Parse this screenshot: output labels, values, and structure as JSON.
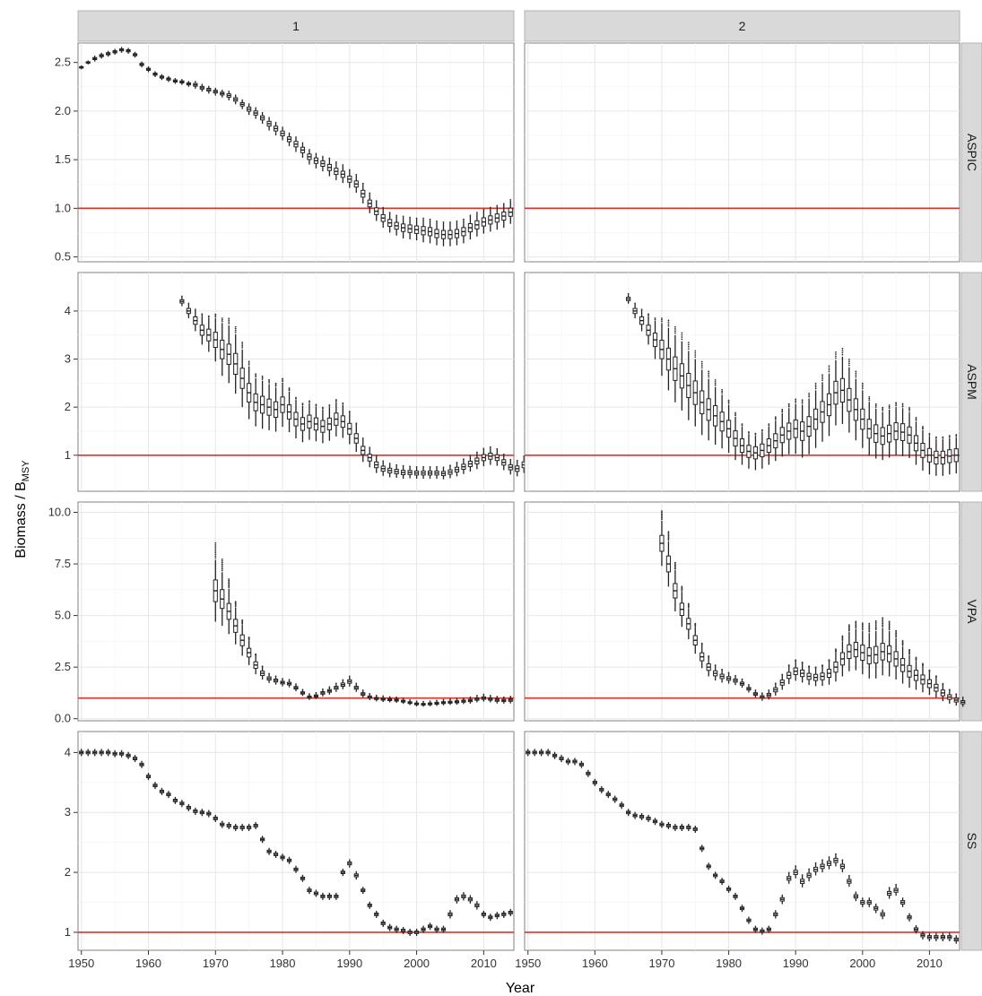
{
  "chart_data": {
    "type": "boxplot-facet-grid",
    "xlabel": "Year",
    "ylabel": "Biomass / B",
    "ylabel_subscript": "MSY",
    "reference_line": {
      "y": 1,
      "color": "#e0302a"
    },
    "columns": [
      "1",
      "2"
    ],
    "rows": [
      {
        "label": "ASPIC",
        "ylim": [
          0.45,
          2.7
        ],
        "yticks": [
          0.5,
          1.0,
          1.5,
          2.0,
          2.5
        ],
        "ytick_labels": [
          "0.5",
          "1.0",
          "1.5",
          "2.0",
          "2.5"
        ]
      },
      {
        "label": "ASPM",
        "ylim": [
          0.25,
          4.8
        ],
        "yticks": [
          1,
          2,
          3,
          4
        ],
        "ytick_labels": [
          "1",
          "2",
          "3",
          "4"
        ]
      },
      {
        "label": "VPA",
        "ylim": [
          -0.1,
          10.5
        ],
        "yticks": [
          0.0,
          2.5,
          5.0,
          7.5,
          10.0
        ],
        "ytick_labels": [
          "0.0",
          "2.5",
          "5.0",
          "7.5",
          "10.0"
        ]
      },
      {
        "label": "SS",
        "ylim": [
          0.7,
          4.35
        ],
        "yticks": [
          1,
          2,
          3,
          4
        ],
        "ytick_labels": [
          "1",
          "2",
          "3",
          "4"
        ]
      }
    ],
    "xlim": [
      1949.5,
      2014.5
    ],
    "xticks": [
      1950,
      1960,
      1970,
      1980,
      1990,
      2000,
      2010
    ],
    "xtick_labels": [
      "1950",
      "1960",
      "1970",
      "1980",
      "1990",
      "2000",
      "2010"
    ],
    "series": [
      {
        "row": "ASPIC",
        "col": "1",
        "start": 1950,
        "median": [
          2.45,
          2.5,
          2.54,
          2.57,
          2.59,
          2.61,
          2.63,
          2.62,
          2.58,
          2.48,
          2.43,
          2.38,
          2.35,
          2.33,
          2.31,
          2.3,
          2.28,
          2.27,
          2.24,
          2.22,
          2.2,
          2.18,
          2.16,
          2.12,
          2.07,
          2.02,
          1.98,
          1.93,
          1.87,
          1.82,
          1.77,
          1.71,
          1.66,
          1.6,
          1.53,
          1.49,
          1.46,
          1.42,
          1.38,
          1.35,
          1.3,
          1.25,
          1.15,
          1.05,
          0.97,
          0.9,
          0.85,
          0.82,
          0.8,
          0.79,
          0.78,
          0.77,
          0.76,
          0.74,
          0.73,
          0.73,
          0.74,
          0.76,
          0.8,
          0.83,
          0.86,
          0.88,
          0.9,
          0.92,
          0.96
        ],
        "spread": [
          0.02,
          0.02,
          0.03,
          0.03,
          0.03,
          0.03,
          0.03,
          0.03,
          0.03,
          0.03,
          0.03,
          0.03,
          0.03,
          0.03,
          0.03,
          0.03,
          0.03,
          0.04,
          0.04,
          0.04,
          0.04,
          0.04,
          0.05,
          0.05,
          0.05,
          0.06,
          0.06,
          0.06,
          0.07,
          0.07,
          0.07,
          0.07,
          0.08,
          0.08,
          0.08,
          0.08,
          0.08,
          0.09,
          0.09,
          0.09,
          0.09,
          0.09,
          0.1,
          0.1,
          0.1,
          0.1,
          0.1,
          0.1,
          0.11,
          0.11,
          0.11,
          0.12,
          0.12,
          0.12,
          0.12,
          0.12,
          0.12,
          0.12,
          0.12,
          0.12,
          0.12,
          0.12,
          0.12,
          0.12,
          0.12
        ]
      },
      {
        "row": "ASPIC",
        "col": "2",
        "start": 1950,
        "median": [],
        "spread": []
      },
      {
        "row": "ASPM",
        "col": "1",
        "start": 1965,
        "median": [
          4.2,
          4.0,
          3.8,
          3.6,
          3.5,
          3.4,
          3.2,
          3.1,
          2.9,
          2.6,
          2.3,
          2.1,
          2.05,
          2.0,
          1.95,
          2.05,
          1.9,
          1.75,
          1.65,
          1.7,
          1.65,
          1.6,
          1.65,
          1.75,
          1.7,
          1.55,
          1.35,
          1.1,
          0.95,
          0.8,
          0.72,
          0.68,
          0.66,
          0.64,
          0.64,
          0.63,
          0.63,
          0.63,
          0.63,
          0.62,
          0.65,
          0.7,
          0.76,
          0.82,
          0.88,
          0.95,
          0.98,
          0.95,
          0.85,
          0.75,
          0.72,
          0.8,
          0.95
        ],
        "spread": [
          0.1,
          0.15,
          0.22,
          0.3,
          0.35,
          0.45,
          0.55,
          0.6,
          0.62,
          0.6,
          0.55,
          0.5,
          0.5,
          0.48,
          0.46,
          0.46,
          0.42,
          0.4,
          0.38,
          0.38,
          0.36,
          0.35,
          0.35,
          0.36,
          0.34,
          0.32,
          0.28,
          0.24,
          0.2,
          0.17,
          0.15,
          0.14,
          0.13,
          0.13,
          0.12,
          0.12,
          0.12,
          0.12,
          0.12,
          0.12,
          0.13,
          0.14,
          0.15,
          0.16,
          0.17,
          0.18,
          0.18,
          0.17,
          0.16,
          0.15,
          0.16,
          0.17,
          0.18
        ]
      },
      {
        "row": "ASPM",
        "col": "2",
        "start": 1965,
        "median": [
          4.25,
          4.0,
          3.8,
          3.6,
          3.4,
          3.2,
          3.0,
          2.8,
          2.65,
          2.45,
          2.3,
          2.1,
          1.95,
          1.82,
          1.7,
          1.55,
          1.35,
          1.2,
          1.08,
          1.05,
          1.1,
          1.2,
          1.3,
          1.42,
          1.5,
          1.55,
          1.5,
          1.6,
          1.75,
          1.9,
          2.05,
          2.3,
          2.35,
          2.15,
          1.95,
          1.75,
          1.55,
          1.45,
          1.4,
          1.45,
          1.5,
          1.48,
          1.42,
          1.25,
          1.1,
          1.0,
          0.95,
          0.95,
          0.98,
          1.0
        ],
        "spread": [
          0.1,
          0.15,
          0.22,
          0.3,
          0.4,
          0.55,
          0.65,
          0.7,
          0.72,
          0.72,
          0.7,
          0.68,
          0.64,
          0.6,
          0.56,
          0.5,
          0.45,
          0.4,
          0.36,
          0.36,
          0.38,
          0.4,
          0.42,
          0.45,
          0.48,
          0.52,
          0.55,
          0.58,
          0.6,
          0.62,
          0.65,
          0.68,
          0.7,
          0.68,
          0.64,
          0.6,
          0.56,
          0.52,
          0.5,
          0.5,
          0.5,
          0.5,
          0.48,
          0.45,
          0.42,
          0.4,
          0.38,
          0.38,
          0.38,
          0.38
        ]
      },
      {
        "row": "VPA",
        "col": "1",
        "start": 1970,
        "median": [
          6.2,
          5.8,
          5.2,
          4.5,
          3.8,
          3.2,
          2.6,
          2.2,
          1.95,
          1.85,
          1.75,
          1.7,
          1.5,
          1.25,
          1.05,
          1.1,
          1.25,
          1.35,
          1.5,
          1.65,
          1.8,
          1.5,
          1.2,
          1.05,
          0.98,
          0.95,
          0.92,
          0.9,
          0.85,
          0.78,
          0.72,
          0.7,
          0.72,
          0.75,
          0.78,
          0.8,
          0.82,
          0.85,
          0.88,
          0.95,
          1.0,
          0.95,
          0.9,
          0.88,
          0.9
        ],
        "spread": [
          1.5,
          1.3,
          1.1,
          0.9,
          0.75,
          0.6,
          0.45,
          0.3,
          0.22,
          0.2,
          0.18,
          0.18,
          0.17,
          0.15,
          0.14,
          0.15,
          0.17,
          0.18,
          0.2,
          0.22,
          0.24,
          0.2,
          0.17,
          0.15,
          0.14,
          0.14,
          0.13,
          0.13,
          0.13,
          0.12,
          0.12,
          0.12,
          0.12,
          0.13,
          0.13,
          0.13,
          0.14,
          0.14,
          0.15,
          0.16,
          0.17,
          0.16,
          0.16,
          0.15,
          0.16
        ]
      },
      {
        "row": "VPA",
        "col": "2",
        "start": 1970,
        "median": [
          8.5,
          7.5,
          6.2,
          5.3,
          4.6,
          3.8,
          3.0,
          2.5,
          2.2,
          2.05,
          1.95,
          1.85,
          1.7,
          1.45,
          1.2,
          1.05,
          1.15,
          1.4,
          1.75,
          2.1,
          2.3,
          2.2,
          2.05,
          2.0,
          2.05,
          2.2,
          2.5,
          2.9,
          3.25,
          3.35,
          3.2,
          3.05,
          3.1,
          3.25,
          3.15,
          2.9,
          2.6,
          2.3,
          2.1,
          1.9,
          1.7,
          1.5,
          1.25,
          1.05,
          0.9,
          0.8
        ],
        "spread": [
          1.1,
          1.1,
          1.0,
          0.85,
          0.75,
          0.65,
          0.55,
          0.45,
          0.35,
          0.3,
          0.25,
          0.22,
          0.2,
          0.18,
          0.17,
          0.18,
          0.22,
          0.28,
          0.35,
          0.42,
          0.46,
          0.45,
          0.42,
          0.42,
          0.46,
          0.55,
          0.7,
          0.85,
          0.95,
          1.0,
          1.05,
          1.1,
          1.15,
          1.15,
          1.1,
          1.0,
          0.9,
          0.8,
          0.7,
          0.62,
          0.55,
          0.48,
          0.4,
          0.32,
          0.26,
          0.22
        ]
      },
      {
        "row": "SS",
        "col": "1",
        "start": 1950,
        "median": [
          4.0,
          4.0,
          4.0,
          4.0,
          4.0,
          3.98,
          3.98,
          3.95,
          3.9,
          3.8,
          3.6,
          3.45,
          3.35,
          3.3,
          3.2,
          3.15,
          3.08,
          3.02,
          3.0,
          2.98,
          2.9,
          2.8,
          2.78,
          2.75,
          2.75,
          2.75,
          2.78,
          2.55,
          2.35,
          2.3,
          2.25,
          2.2,
          2.05,
          1.9,
          1.7,
          1.65,
          1.6,
          1.6,
          1.6,
          2.0,
          2.15,
          1.95,
          1.7,
          1.45,
          1.3,
          1.15,
          1.08,
          1.05,
          1.03,
          1.0,
          1.0,
          1.05,
          1.1,
          1.05,
          1.05,
          1.3,
          1.55,
          1.6,
          1.55,
          1.45,
          1.3,
          1.25,
          1.28,
          1.3,
          1.33
        ],
        "spread": [
          0.06,
          0.06,
          0.06,
          0.06,
          0.06,
          0.06,
          0.06,
          0.06,
          0.06,
          0.06,
          0.06,
          0.06,
          0.06,
          0.06,
          0.06,
          0.06,
          0.06,
          0.06,
          0.06,
          0.06,
          0.06,
          0.06,
          0.06,
          0.06,
          0.06,
          0.06,
          0.06,
          0.06,
          0.06,
          0.06,
          0.06,
          0.06,
          0.06,
          0.06,
          0.06,
          0.06,
          0.06,
          0.06,
          0.06,
          0.06,
          0.07,
          0.07,
          0.06,
          0.06,
          0.06,
          0.06,
          0.06,
          0.06,
          0.06,
          0.06,
          0.06,
          0.06,
          0.06,
          0.06,
          0.06,
          0.07,
          0.07,
          0.07,
          0.07,
          0.07,
          0.06,
          0.06,
          0.06,
          0.06,
          0.06
        ]
      },
      {
        "row": "SS",
        "col": "2",
        "start": 1950,
        "median": [
          4.0,
          4.0,
          4.0,
          4.0,
          3.95,
          3.9,
          3.85,
          3.85,
          3.8,
          3.65,
          3.5,
          3.38,
          3.3,
          3.22,
          3.12,
          3.0,
          2.95,
          2.93,
          2.9,
          2.85,
          2.8,
          2.78,
          2.75,
          2.75,
          2.75,
          2.72,
          2.4,
          2.1,
          1.95,
          1.85,
          1.72,
          1.6,
          1.4,
          1.2,
          1.05,
          1.02,
          1.05,
          1.3,
          1.55,
          1.9,
          2.0,
          1.85,
          1.95,
          2.05,
          2.1,
          2.15,
          2.2,
          2.1,
          1.85,
          1.6,
          1.5,
          1.5,
          1.4,
          1.3,
          1.65,
          1.7,
          1.5,
          1.25,
          1.05,
          0.95,
          0.92,
          0.92,
          0.92,
          0.92,
          0.88
        ],
        "spread": [
          0.06,
          0.06,
          0.06,
          0.06,
          0.06,
          0.06,
          0.06,
          0.06,
          0.06,
          0.06,
          0.06,
          0.06,
          0.06,
          0.06,
          0.06,
          0.06,
          0.06,
          0.06,
          0.06,
          0.06,
          0.06,
          0.06,
          0.06,
          0.06,
          0.06,
          0.06,
          0.06,
          0.06,
          0.06,
          0.06,
          0.06,
          0.06,
          0.06,
          0.06,
          0.06,
          0.06,
          0.06,
          0.07,
          0.08,
          0.09,
          0.1,
          0.1,
          0.1,
          0.1,
          0.1,
          0.1,
          0.1,
          0.1,
          0.09,
          0.08,
          0.08,
          0.08,
          0.08,
          0.08,
          0.09,
          0.09,
          0.08,
          0.07,
          0.07,
          0.07,
          0.07,
          0.07,
          0.07,
          0.07,
          0.07
        ]
      }
    ]
  }
}
